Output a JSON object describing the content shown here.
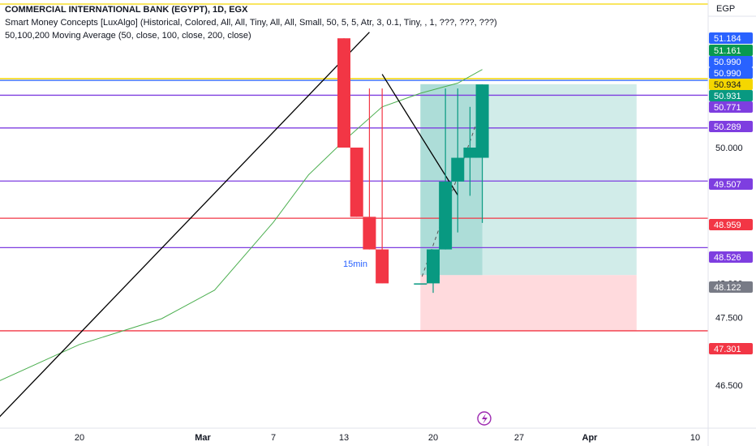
{
  "legend": {
    "title": "COMMERCIAL INTERNATIONAL BANK (EGYPT), 1D, EGX",
    "indicator1": "Smart Money Concepts [LuxAlgo] (Historical, Colored, All, All, Tiny, All, All, Small, 50, 5, 5, Atr, 3, 0.1, Tiny, , 1, ???, ???, ???)",
    "indicator2": "50,100,200 Moving Average (50, close, 100, close, 200, close)"
  },
  "currency": "EGP",
  "annotation": "15min",
  "colors": {
    "bull": "#089981",
    "bear": "#f23645",
    "ma": "#4caf50",
    "trendline": "#000000",
    "blue_line": "#2962ff",
    "purple_line": "#7e3ee0",
    "red_line": "#f23645",
    "yellow_line": "#f5d700",
    "gray_line": "#787b86",
    "target_fill": "#b2dfdb",
    "stop_fill": "#ffcdd2"
  },
  "chart_data": {
    "type": "candlestick",
    "title": "COMMERCIAL INTERNATIONAL BANK (EGYPT), 1D, EGX",
    "y_axis": {
      "ylim": [
        46.22,
        51.5
      ],
      "ticks": [
        46.5,
        47.0,
        47.5,
        48.0,
        50.0
      ],
      "tick_labels": [
        "46.500",
        "47.000",
        "47.500",
        "48.000",
        "50.000"
      ],
      "position": "right"
    },
    "x_axis": {
      "ticks": [
        "20",
        "Mar",
        "7",
        "13",
        "20",
        "27",
        "Apr",
        "10"
      ]
    },
    "candles": [
      {
        "date": "Mar 13",
        "open": 51.61,
        "high": 51.61,
        "low": 50.0,
        "close": 50.0
      },
      {
        "date": "Mar 14",
        "open": 50.0,
        "high": 50.0,
        "low": 48.98,
        "close": 48.98
      },
      {
        "date": "Mar 15",
        "open": 48.98,
        "high": 50.87,
        "low": 48.5,
        "close": 48.5
      },
      {
        "date": "Mar 16",
        "open": 48.5,
        "high": 50.87,
        "low": 48.0,
        "close": 48.0
      },
      {
        "date": "Mar 19",
        "open": 48.0,
        "high": 48.0,
        "low": 48.0,
        "close": 48.0
      },
      {
        "date": "Mar 20",
        "open": 48.0,
        "high": 48.5,
        "low": 47.86,
        "close": 48.5
      },
      {
        "date": "Mar 21",
        "open": 48.5,
        "high": 50.87,
        "low": 48.5,
        "close": 49.5
      },
      {
        "date": "Mar 22",
        "open": 49.5,
        "high": 50.87,
        "low": 48.75,
        "close": 49.85
      },
      {
        "date": "Mar 23",
        "open": 49.85,
        "high": 50.6,
        "low": 49.29,
        "close": 50.0
      },
      {
        "date": "Mar 24",
        "open": 49.85,
        "high": 50.93,
        "low": 48.89,
        "close": 50.93
      }
    ],
    "moving_average": {
      "name": "MA 50",
      "points": [
        {
          "date": "Feb 14",
          "value": 46.55
        },
        {
          "date": "Feb 20",
          "value": 47.1
        },
        {
          "date": "Feb 26",
          "value": 47.48
        },
        {
          "date": "Mar 2",
          "value": 47.9
        },
        {
          "date": "Mar 7",
          "value": 48.9
        },
        {
          "date": "Mar 10",
          "value": 49.6
        },
        {
          "date": "Mar 13",
          "value": 50.1
        },
        {
          "date": "Mar 16",
          "value": 50.6
        },
        {
          "date": "Mar 19",
          "value": 50.8
        },
        {
          "date": "Mar 22",
          "value": 50.95
        },
        {
          "date": "Mar 24",
          "value": 51.15
        }
      ]
    },
    "trendlines": [
      {
        "from": {
          "date": "Feb 14",
          "value": 46.0
        },
        "to": {
          "date": "Mar 15",
          "value": 51.7
        }
      },
      {
        "from": {
          "date": "Mar 16",
          "value": 51.08
        },
        "to": {
          "date": "Mar 22",
          "value": 49.3
        }
      }
    ],
    "horizontal_levels": [
      {
        "value": 51.184,
        "label": "51.184",
        "color": "blue"
      },
      {
        "value": 51.161,
        "label": "51.161",
        "color": "green"
      },
      {
        "value": 50.99,
        "label": "50.990",
        "color": "blue"
      },
      {
        "value": 50.99,
        "label": "50.990",
        "color": "blue"
      },
      {
        "value": 50.934,
        "label": "50.934",
        "color": "yellow"
      },
      {
        "value": 50.931,
        "label": "50.931",
        "color": "green"
      },
      {
        "value": 50.771,
        "label": "50.771",
        "color": "purple"
      },
      {
        "value": 50.289,
        "label": "50.289",
        "color": "purple"
      },
      {
        "value": 49.507,
        "label": "49.507",
        "color": "purple"
      },
      {
        "value": 48.959,
        "label": "48.959",
        "color": "red"
      },
      {
        "value": 48.526,
        "label": "48.526",
        "color": "purple"
      },
      {
        "value": 48.122,
        "label": "48.122",
        "color": "gray"
      },
      {
        "value": 47.301,
        "label": "47.301",
        "color": "red"
      }
    ],
    "position_tool": {
      "entry": 48.122,
      "target": 50.934,
      "stop": 47.301,
      "start_date": "Mar 19",
      "end_date": "Apr 5"
    }
  }
}
